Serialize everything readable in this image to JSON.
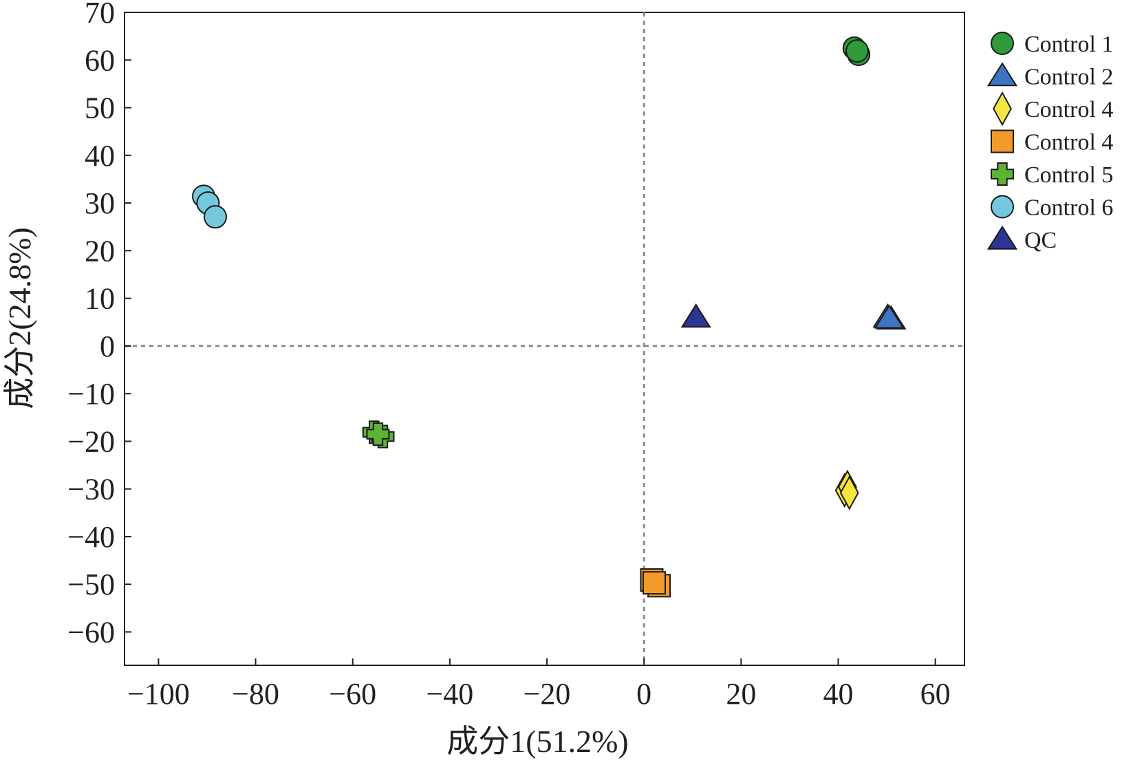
{
  "chart_data": {
    "type": "scatter",
    "xlabel": "成分1(51.2%)",
    "ylabel": "成分2(24.8%)",
    "xlim": [
      -107,
      66
    ],
    "ylim": [
      -67,
      70
    ],
    "xticks": [
      -100,
      -80,
      -60,
      -40,
      -20,
      0,
      20,
      40,
      60
    ],
    "yticks": [
      70,
      60,
      50,
      40,
      30,
      20,
      10,
      0,
      -10,
      -20,
      -30,
      -40,
      -50,
      -60
    ],
    "reference_lines": {
      "x": 0,
      "y": 0,
      "style": "dotted"
    },
    "grid": false,
    "legend_position": "right",
    "series": [
      {
        "name": "Control 1",
        "marker": "circle",
        "color": "#2e9a3a",
        "points": [
          [
            43.3,
            62.5
          ],
          [
            44.2,
            61.2
          ],
          [
            43.9,
            61.9
          ]
        ]
      },
      {
        "name": "Control 2",
        "marker": "triangle",
        "color": "#3f74c4",
        "points": [
          [
            50.2,
            6.0
          ],
          [
            50.9,
            5.6
          ],
          [
            50.5,
            5.8
          ]
        ]
      },
      {
        "name": "Control 4",
        "marker": "diamond",
        "color": "#f5e53c",
        "points": [
          [
            41.3,
            -30.3
          ],
          [
            41.9,
            -29.6
          ],
          [
            42.3,
            -30.8
          ]
        ]
      },
      {
        "name": "Control 4",
        "marker": "square",
        "color": "#f39a2c",
        "points": [
          [
            1.6,
            -49.1
          ],
          [
            3.1,
            -50.3
          ],
          [
            2.1,
            -49.7
          ]
        ]
      },
      {
        "name": "Control 5",
        "marker": "plus",
        "color": "#5cb335",
        "points": [
          [
            -55.6,
            -18.1
          ],
          [
            -53.8,
            -19.0
          ],
          [
            -54.8,
            -18.5
          ]
        ]
      },
      {
        "name": "Control 6",
        "marker": "circle",
        "color": "#73c8dc",
        "points": [
          [
            -90.7,
            31.4
          ],
          [
            -89.8,
            30.0
          ],
          [
            -88.3,
            27.1
          ]
        ]
      },
      {
        "name": "QC",
        "marker": "triangle",
        "color": "#2c3594",
        "points": [
          [
            10.7,
            6.0
          ]
        ]
      }
    ]
  }
}
